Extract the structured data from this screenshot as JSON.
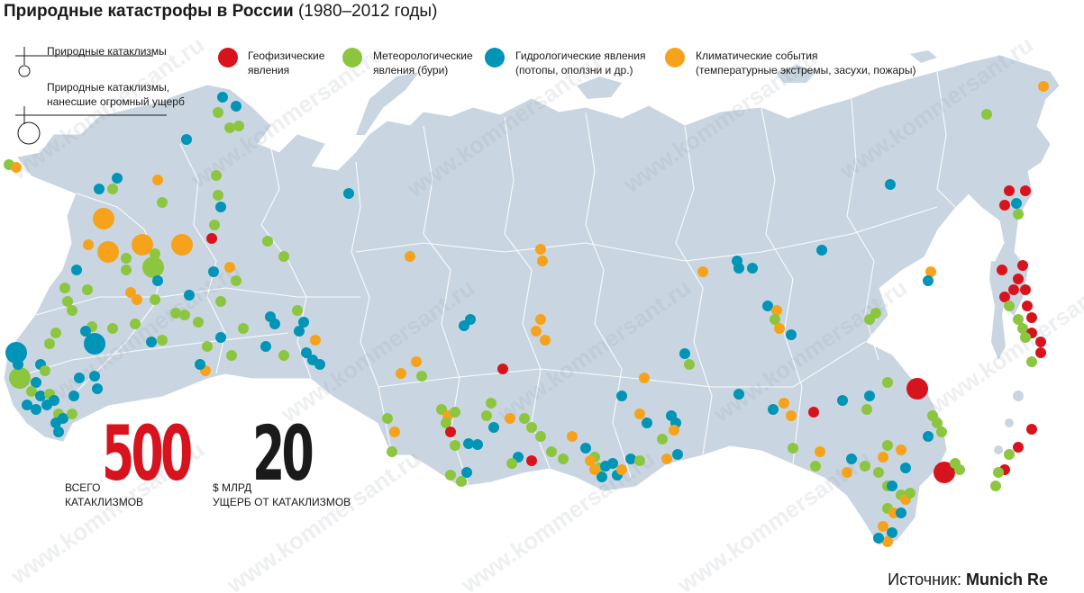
{
  "title": {
    "bold": "Природные катастрофы в России",
    "subtitle": "(1980–2012 годы)"
  },
  "size_legend": {
    "small": "Природные катаклизмы",
    "large_line1": "Природные катаклизмы,",
    "large_line2": "нанесшие огромный ущерб"
  },
  "categories": [
    {
      "id": "geo",
      "label_line1": "Геофизические",
      "label_line2": "явления",
      "color": "#d7141e"
    },
    {
      "id": "met",
      "label_line1": "Метеорологические",
      "label_line2": "явления (бури)",
      "color": "#8cc63f"
    },
    {
      "id": "hyd",
      "label_line1": "Гидрологические явления",
      "label_line2": "(потопы, оползни и др.)",
      "color": "#0095b6"
    },
    {
      "id": "cli",
      "label_line1": "Климатические события",
      "label_line2": "(температурные экстремы, засухи, пожары)",
      "color": "#f7a21b"
    }
  ],
  "stats": {
    "total_number": "500",
    "total_label_line1": "ВСЕГО",
    "total_label_line2": "КАТАКЛИЗМОВ",
    "damage_number": "20",
    "damage_label_line1": "$ МЛРД",
    "damage_label_line2": "УЩЕРБ ОТ КАТАКЛИЗМОВ"
  },
  "watermark": "www.kommersant.ru",
  "source": {
    "prefix": "Источник:",
    "name": "Munich Re"
  },
  "colors": {
    "land": "#c9d6e2",
    "border": "#ffffff"
  }
}
